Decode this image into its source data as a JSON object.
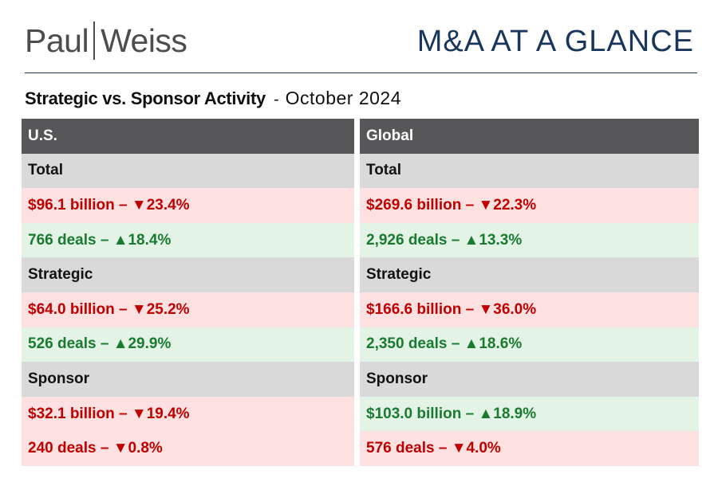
{
  "brand": {
    "left": "Paul",
    "right": "Weiss"
  },
  "headline": "M&A AT A GLANCE",
  "subtitle": {
    "main": "Strategic vs. Sponsor Activity",
    "separator": "-",
    "period": "October 2024"
  },
  "colors": {
    "header_bg": "#575759",
    "section_bg": "#d9d9d9",
    "down_bg": "#fde1e1",
    "down_text": "#c00000",
    "up_bg": "#e3f4e7",
    "up_text": "#1a7a30",
    "headline": "#1b365d"
  },
  "us": {
    "title": "U.S.",
    "total": {
      "label": "Total",
      "value": "$96.1 billion – ▼23.4%",
      "deals": "766 deals – ▲18.4%"
    },
    "strategic": {
      "label": "Strategic",
      "value": "$64.0 billion – ▼25.2%",
      "deals": "526 deals – ▲29.9%"
    },
    "sponsor": {
      "label": "Sponsor",
      "value": "$32.1 billion – ▼19.4%",
      "deals": "240 deals – ▼0.8%"
    }
  },
  "global": {
    "title": "Global",
    "total": {
      "label": "Total",
      "value": "$269.6 billion – ▼22.3%",
      "deals": "2,926 deals – ▲13.3%"
    },
    "strategic": {
      "label": "Strategic",
      "value": "$166.6 billion – ▼36.0%",
      "deals": "2,350 deals – ▲18.6%"
    },
    "sponsor": {
      "label": "Sponsor",
      "value": "$103.0 billion – ▲18.9%",
      "deals": "576 deals – ▼4.0%"
    }
  }
}
